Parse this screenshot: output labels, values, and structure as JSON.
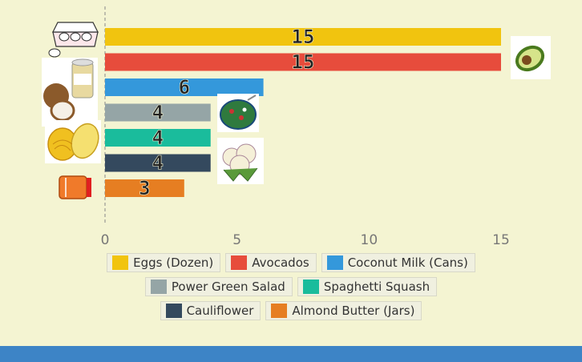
{
  "chart_data": {
    "type": "bar",
    "orientation": "horizontal",
    "categories": [
      "Eggs (Dozen)",
      "Avocados",
      "Coconut Milk (Cans)",
      "Power Green Salad",
      "Spaghetti Squash",
      "Cauliflower",
      "Almond Butter (Jars)"
    ],
    "values": [
      15,
      15,
      6,
      4,
      4,
      4,
      3
    ],
    "colors": [
      "#f1c40f",
      "#e74c3c",
      "#3498db",
      "#95a5a6",
      "#1abc9c",
      "#34495e",
      "#e67e22"
    ],
    "xlim": [
      0,
      17.5
    ],
    "xticks": [
      "0",
      "5",
      "10",
      "15"
    ],
    "legend_position": "bottom",
    "grid": false,
    "icons": [
      "egg-carton-icon",
      "avocado-icon",
      "coconut-milk-icon",
      "salad-bowl-icon",
      "spaghetti-squash-icon",
      "cauliflower-icon",
      "almond-butter-jar-icon"
    ]
  }
}
